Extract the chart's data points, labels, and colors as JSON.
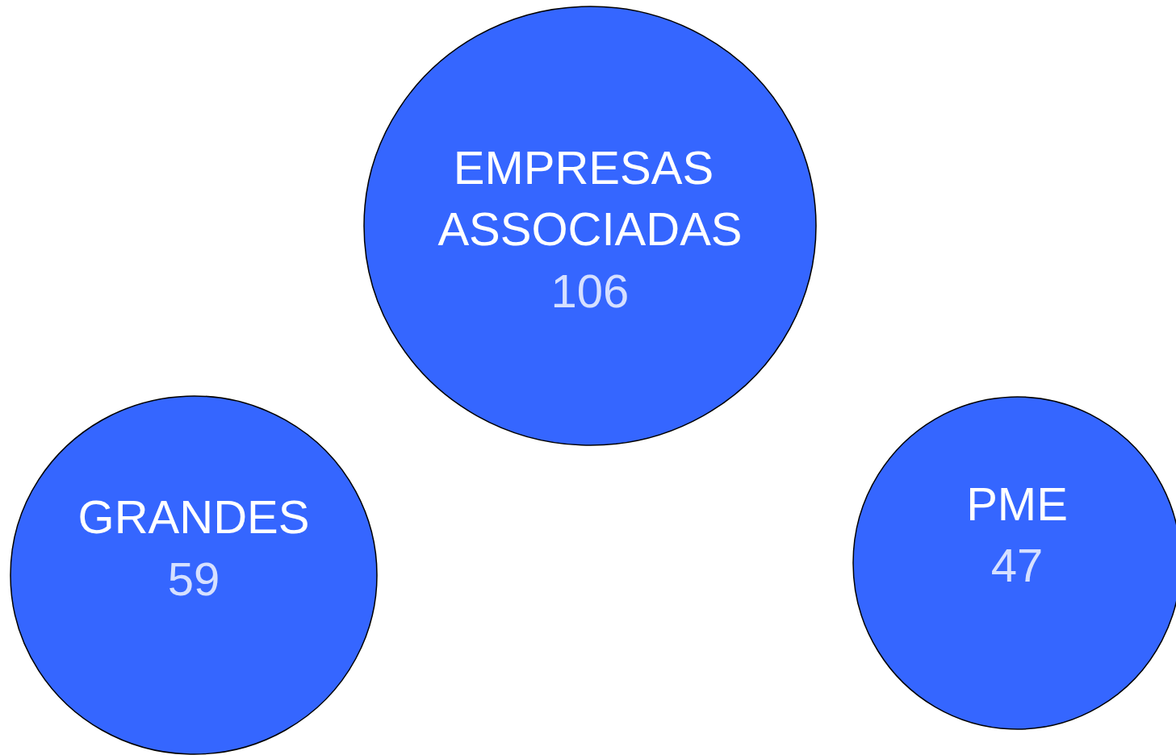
{
  "chart_data": {
    "type": "other",
    "categories": [
      "EMPRESAS ASSOCIADAS",
      "GRANDES",
      "PME"
    ],
    "values": [
      106,
      59,
      47
    ],
    "color": "#3566ff",
    "data_labels": true
  }
}
